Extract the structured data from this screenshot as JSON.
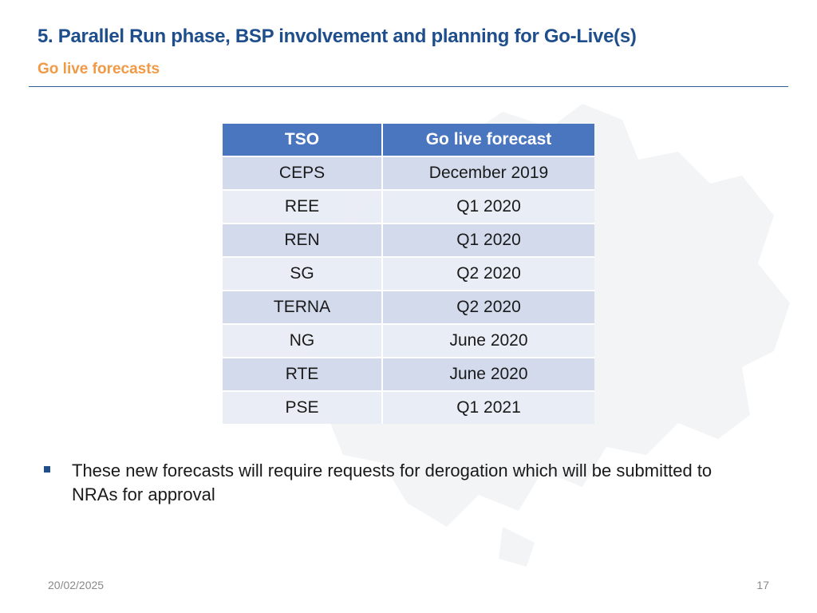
{
  "slide": {
    "title": "5. Parallel Run phase, BSP involvement and planning for Go-Live(s)",
    "subtitle": "Go live forecasts"
  },
  "table": {
    "headers": {
      "tso": "TSO",
      "forecast": "Go live forecast"
    },
    "rows": [
      {
        "tso": "CEPS",
        "forecast": "December 2019"
      },
      {
        "tso": "REE",
        "forecast": "Q1 2020"
      },
      {
        "tso": "REN",
        "forecast": "Q1 2020"
      },
      {
        "tso": "SG",
        "forecast": "Q2 2020"
      },
      {
        "tso": "TERNA",
        "forecast": "Q2 2020"
      },
      {
        "tso": "NG",
        "forecast": "June 2020"
      },
      {
        "tso": "RTE",
        "forecast": "June 2020"
      },
      {
        "tso": "PSE",
        "forecast": "Q1 2021"
      }
    ]
  },
  "bullets": [
    "These new forecasts will require requests for derogation which will be submitted to NRAs for approval"
  ],
  "footer": {
    "date": "20/02/2025",
    "page_number": "17"
  },
  "colors": {
    "title": "#1f4e8c",
    "subtitle": "#f09a46",
    "table_header": "#4a76c0",
    "row_odd": "#cfd7ea",
    "row_even": "#e8ecf4"
  },
  "icons": {
    "background": "europe-map-watermark",
    "bullet": "square-bullet-icon"
  }
}
